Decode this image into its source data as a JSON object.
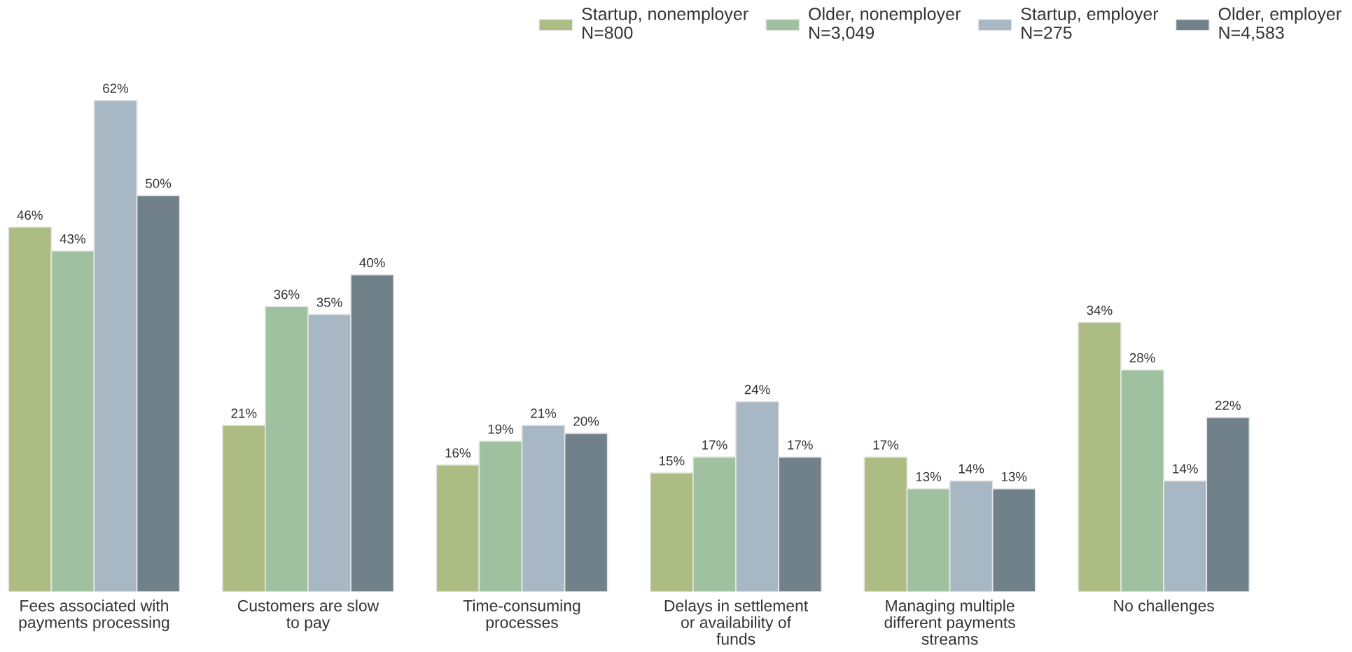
{
  "chart_data": {
    "type": "bar",
    "categories": [
      "Fees associated with\npayments processing",
      "Customers are slow\nto pay",
      "Time-consuming\nprocesses",
      "Delays in settlement\nor availability of\nfunds",
      "Managing multiple\ndifferent payments\nstreams",
      "No challenges"
    ],
    "series": [
      {
        "name": "Startup, nonemployer\nN=800",
        "color": "#adbc82",
        "values": [
          46,
          21,
          16,
          15,
          17,
          34
        ],
        "value_labels": [
          "46%",
          "21%",
          "16%",
          "15%",
          "17%",
          "34%"
        ]
      },
      {
        "name": "Older, nonemployer\nN=3,049",
        "color": "#a0c1a0",
        "values": [
          43,
          36,
          19,
          17,
          13,
          28
        ],
        "value_labels": [
          "43%",
          "36%",
          "19%",
          "17%",
          "13%",
          "28%"
        ]
      },
      {
        "name": "Startup, employer\nN=275",
        "color": "#a8b7c4",
        "values": [
          62,
          35,
          21,
          24,
          14,
          14
        ],
        "value_labels": [
          "62%",
          "35%",
          "21%",
          "24%",
          "14%",
          "14%"
        ]
      },
      {
        "name": "Older, employer\nN=4,583",
        "color": "#718189",
        "values": [
          50,
          40,
          20,
          17,
          13,
          22
        ],
        "value_labels": [
          "50%",
          "40%",
          "20%",
          "17%",
          "13%",
          "22%"
        ]
      }
    ],
    "legend": "top right",
    "grid": false,
    "tick_labels": "x"
  }
}
